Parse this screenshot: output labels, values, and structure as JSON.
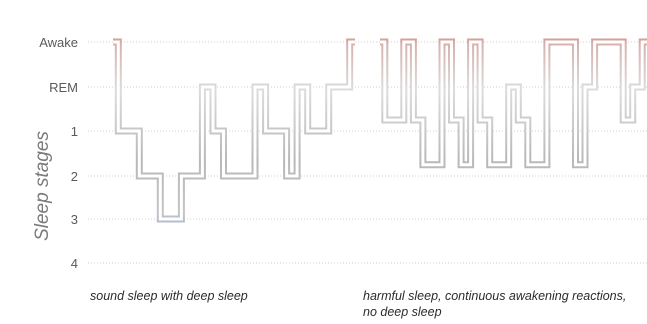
{
  "chart_data": {
    "type": "line",
    "ylabel": "Sleep stages",
    "xlabel": "",
    "y_tick_labels": [
      "Awake",
      "REM",
      "1",
      "2",
      "3",
      "4"
    ],
    "grid": true,
    "series": [
      {
        "values": [
          0,
          2,
          2,
          3,
          3,
          4,
          4,
          3,
          3,
          1,
          2,
          3,
          3,
          3,
          1,
          2,
          2,
          3,
          1,
          2,
          2,
          1,
          1,
          0
        ]
      },
      {
        "values": [
          0,
          1.75,
          1.75,
          0,
          1.75,
          2.75,
          2.75,
          0,
          1.75,
          2.75,
          0,
          1.75,
          2.75,
          2.75,
          1,
          1.75,
          2.75,
          2.75,
          0,
          0,
          0,
          2.75,
          1,
          0,
          0,
          0,
          1.75,
          1,
          0
        ]
      }
    ],
    "annotations": [
      "sound sleep with deep sleep",
      "harmful sleep, continuous awakening reactions, no deep sleep"
    ]
  }
}
